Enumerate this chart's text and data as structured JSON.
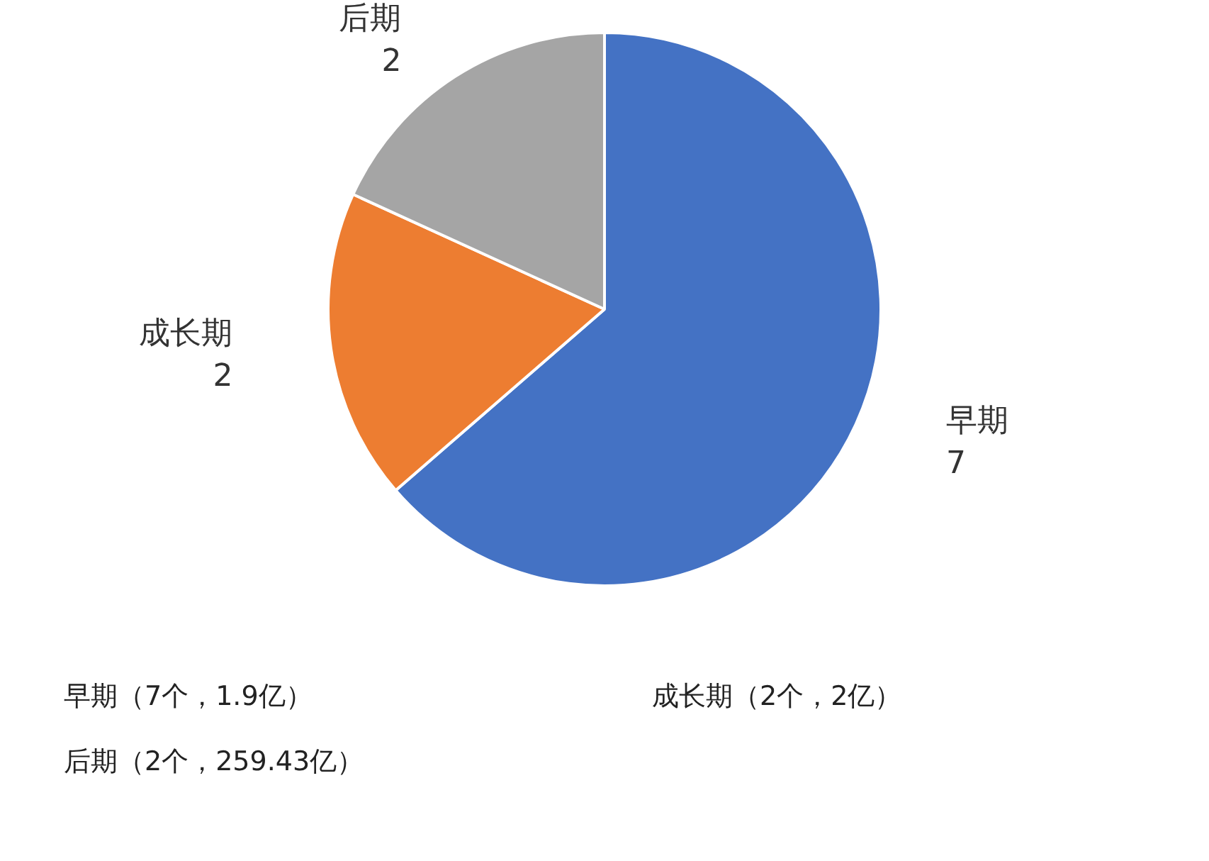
{
  "chart_data": {
    "type": "pie",
    "categories": [
      "早期",
      "成长期",
      "后期"
    ],
    "values": [
      7,
      2,
      2
    ],
    "colors": [
      "#4472c4",
      "#ed7d31",
      "#a5a5a5"
    ],
    "data_labels": true,
    "legend": false,
    "annotations": [
      "早期（7个，1.9亿）",
      "成长期（2个，2亿）",
      "后期（2个，259.43亿）"
    ]
  }
}
